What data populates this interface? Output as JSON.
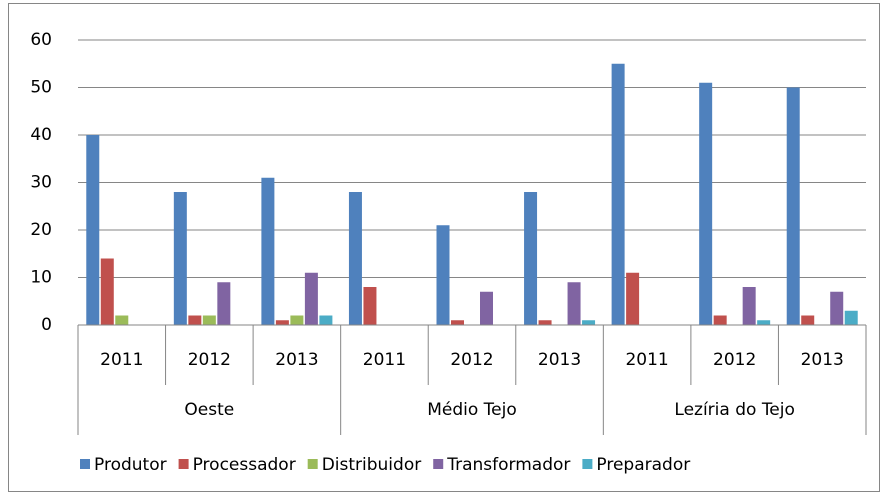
{
  "chart_data": {
    "type": "bar",
    "categories": [
      "2011",
      "2012",
      "2013",
      "2011",
      "2012",
      "2013",
      "2011",
      "2012",
      "2013"
    ],
    "groups": [
      "Oeste",
      "Médio Tejo",
      "Lezíria do Tejo"
    ],
    "series": [
      {
        "name": "Produtor",
        "color": "#4f81bd",
        "values": [
          40,
          28,
          31,
          28,
          21,
          28,
          55,
          51,
          50
        ]
      },
      {
        "name": "Processador",
        "color": "#c0504d",
        "values": [
          14,
          2,
          1,
          8,
          1,
          1,
          11,
          2,
          2
        ]
      },
      {
        "name": "Distribuidor",
        "color": "#9bbb59",
        "values": [
          2,
          2,
          2,
          0,
          0,
          0,
          0,
          0,
          0
        ]
      },
      {
        "name": "Transformador",
        "color": "#8064a2",
        "values": [
          0,
          9,
          11,
          0,
          7,
          9,
          0,
          8,
          7
        ]
      },
      {
        "name": "Preparador",
        "color": "#4bacc6",
        "values": [
          0,
          0,
          2,
          0,
          0,
          1,
          0,
          1,
          3
        ]
      }
    ],
    "ylim": [
      0,
      60
    ],
    "yticks": [
      0,
      10,
      20,
      30,
      40,
      50,
      60
    ],
    "grid": true,
    "legend": "bottom"
  }
}
